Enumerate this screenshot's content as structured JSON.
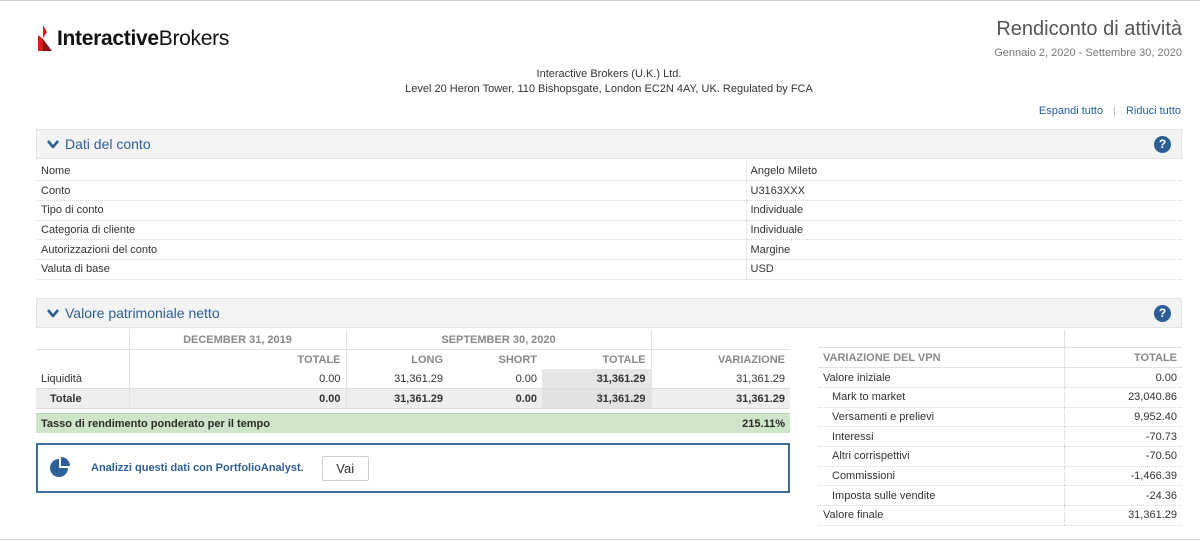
{
  "brand": {
    "name_bold": "Interactive",
    "name_rest": "Brokers",
    "accent": "#d81e1e"
  },
  "report": {
    "title": "Rendiconto di attività",
    "dates": "Gennaio 2, 2020 - Settembre 30, 2020"
  },
  "company": {
    "line1": "Interactive Brokers (U.K.) Ltd.",
    "line2": "Level 20 Heron Tower, 110 Bishopsgate, London EC2N 4AY, UK. Regulated by FCA"
  },
  "links": {
    "expand": "Espandi tutto",
    "collapse": "Riduci tutto"
  },
  "account_section": {
    "title": "Dati del conto",
    "help": "?",
    "rows": [
      {
        "label": "Nome",
        "value": "Angelo Mileto"
      },
      {
        "label": "Conto",
        "value": "U3163XXX"
      },
      {
        "label": "Tipo di conto",
        "value": "Individuale"
      },
      {
        "label": "Categoria di cliente",
        "value": "Individuale"
      },
      {
        "label": "Autorizzazioni del conto",
        "value": "Margine"
      },
      {
        "label": "Valuta di base",
        "value": "USD"
      }
    ]
  },
  "nav_section": {
    "title": "Valore patrimoniale netto",
    "help": "?",
    "group_heads": {
      "prev": "DECEMBER 31, 2019",
      "curr": "SEPTEMBER 30, 2020"
    },
    "col_heads": {
      "totale_prev": "TOTALE",
      "long": "LONG",
      "short": "SHORT",
      "totale_curr": "TOTALE",
      "variazione": "VARIAZIONE"
    },
    "rows": [
      {
        "label": "Liquidità",
        "totale_prev": "0.00",
        "long": "31,361.29",
        "short": "0.00",
        "totale_curr": "31,361.29",
        "variazione": "31,361.29"
      },
      {
        "label": "Totale",
        "totale_prev": "0.00",
        "long": "31,361.29",
        "short": "0.00",
        "totale_curr": "31,361.29",
        "variazione": "31,361.29"
      }
    ],
    "twr": {
      "label": "Tasso di rendimento ponderato per il tempo",
      "value": "215.11%"
    },
    "portfolio_analyst": {
      "text": "Analizzi questi dati con PortfolioAnalyst.",
      "button": "Vai"
    },
    "vpn_change": {
      "head_label": "VARIAZIONE DEL VPN",
      "head_total": "TOTALE",
      "rows": [
        {
          "label": "Valore iniziale",
          "value": "0.00"
        },
        {
          "label": "Mark to market",
          "value": "23,040.86"
        },
        {
          "label": "Versamenti e prelievi",
          "value": "9,952.40"
        },
        {
          "label": "Interessi",
          "value": "-70.73"
        },
        {
          "label": "Altri corrispettivi",
          "value": "-70.50"
        },
        {
          "label": "Commissioni",
          "value": "-1,466.39"
        },
        {
          "label": "Imposta sulle vendite",
          "value": "-24.36"
        },
        {
          "label": "Valore finale",
          "value": "31,361.29"
        }
      ]
    }
  },
  "colors": {
    "section_title": "#2d5f95",
    "link": "#215fa0",
    "twr_bg": "#cfe5c9",
    "pa_border": "#3f6c9c"
  },
  "icons": {
    "logo": "ib-flame-logo",
    "chevron": "chevron-down-icon",
    "help": "help-icon",
    "portfolio": "pie-chart-icon"
  }
}
